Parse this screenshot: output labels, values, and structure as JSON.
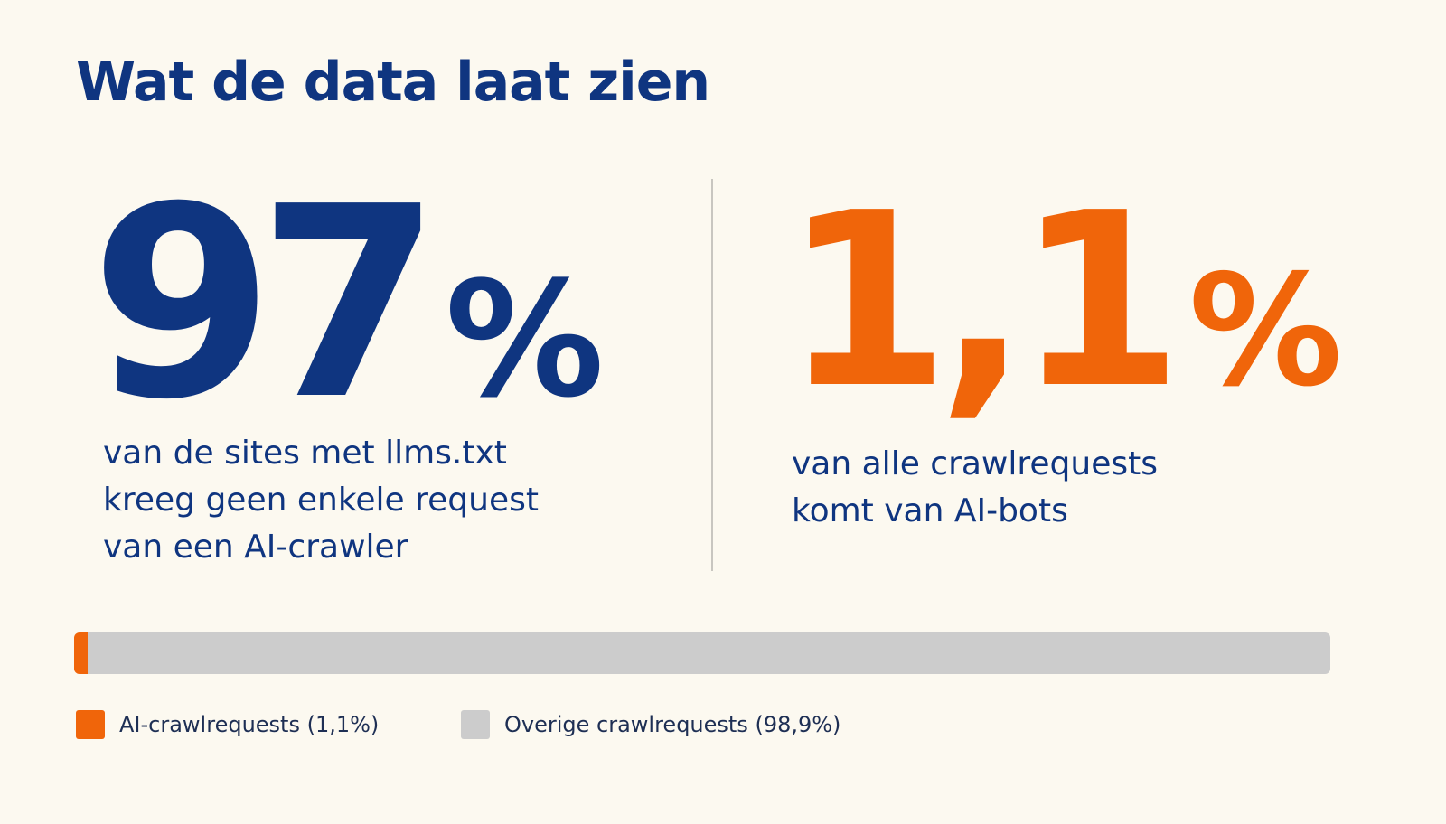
{
  "title": "Wat de data laat zien",
  "stats": {
    "left": {
      "number": "97",
      "unit": "%",
      "caption_lines": [
        "van de sites met llms.txt",
        "kreeg geen enkele request",
        "van een AI-crawler"
      ]
    },
    "right": {
      "number": "1,1",
      "unit": "%",
      "caption_lines": [
        "van alle crawlrequests",
        "komt van AI-bots"
      ]
    }
  },
  "colors": {
    "background": "#fcf9f0",
    "navy": "#0f3580",
    "orange": "#f0650a",
    "gray": "#cccccc",
    "divider": "#c8c6c0"
  },
  "chart_data": {
    "type": "bar",
    "orientation": "horizontal-stacked",
    "unit": "%",
    "series": [
      {
        "name": "AI-crawlrequests (1,1%)",
        "value": 1.1,
        "color": "#f0650a"
      },
      {
        "name": "Overige crawlrequests (98,9%)",
        "value": 98.9,
        "color": "#cccccc"
      }
    ],
    "total": 100,
    "legend_placement": "bottom-left"
  }
}
